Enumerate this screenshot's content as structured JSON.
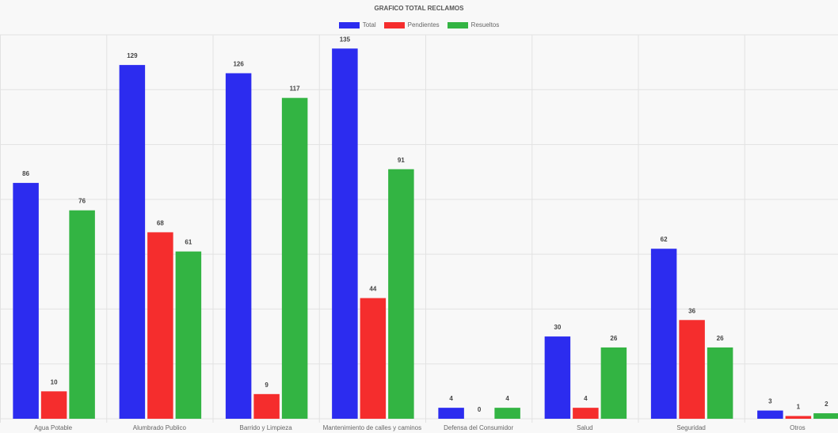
{
  "chart_data": {
    "type": "bar",
    "title": "GRAFICO TOTAL RECLAMOS",
    "categories": [
      "Agua Potable",
      "Alumbrado Publico",
      "Barrido y Limpieza",
      "Mantenimiento de calles y caminos",
      "Defensa del Consumidor",
      "Salud",
      "Seguridad",
      "Otros"
    ],
    "series": [
      {
        "name": "Total",
        "color": "#2c2cef",
        "values": [
          86,
          129,
          126,
          135,
          4,
          30,
          62,
          3
        ]
      },
      {
        "name": "Pendientes",
        "color": "#f52d2d",
        "values": [
          10,
          68,
          9,
          44,
          0,
          4,
          36,
          1
        ]
      },
      {
        "name": "Resueltos",
        "color": "#33b443",
        "values": [
          76,
          61,
          117,
          91,
          4,
          26,
          26,
          2
        ]
      }
    ],
    "ylim": [
      0,
      140
    ],
    "grid": true,
    "legend_position": "top-center",
    "xlabel": "",
    "ylabel": ""
  }
}
